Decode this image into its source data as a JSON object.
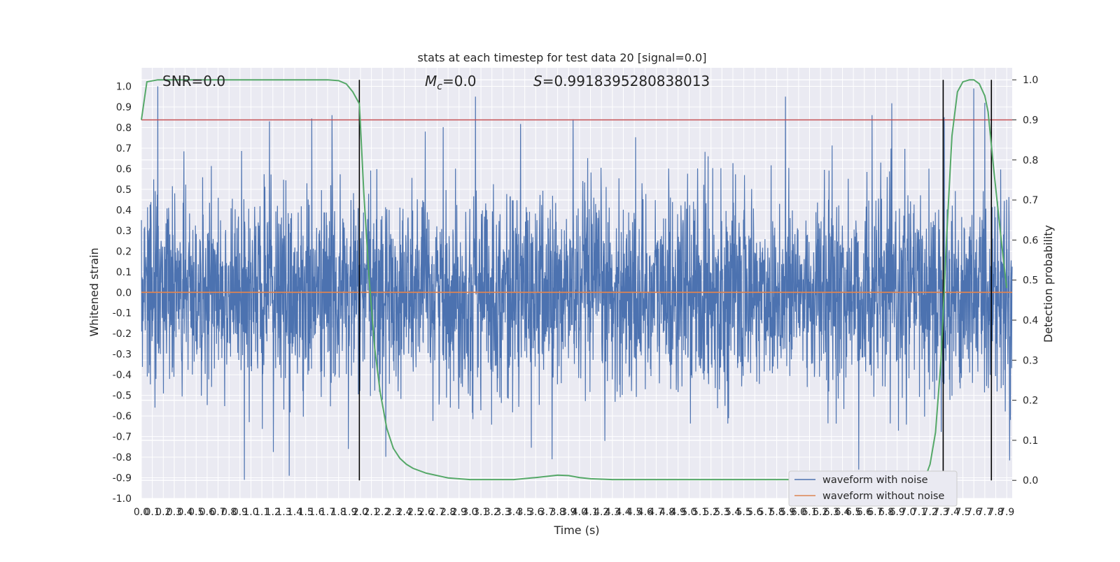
{
  "chart_data": {
    "type": "line",
    "title": "stats at each timestep for test data 20 [signal=0.0]",
    "xlabel": "Time (s)",
    "ylabel": "Whitened strain",
    "y2label": "Detection probability",
    "xlim": [
      0.0,
      7.95
    ],
    "ylim": [
      -1.0,
      1.09
    ],
    "y2lim": [
      -0.045,
      1.03
    ],
    "x_ticks": [
      "0.0",
      "0.1",
      "0.2",
      "0.3",
      "0.4",
      "0.5",
      "0.6",
      "0.7",
      "0.8",
      "0.9",
      "1.0",
      "1.1",
      "1.2",
      "1.3",
      "1.4",
      "1.5",
      "1.6",
      "1.7",
      "1.8",
      "1.9",
      "2.0",
      "2.1",
      "2.2",
      "2.3",
      "2.4",
      "2.5",
      "2.6",
      "2.7",
      "2.8",
      "2.9",
      "3.0",
      "3.1",
      "3.2",
      "3.3",
      "3.4",
      "3.5",
      "3.6",
      "3.7",
      "3.8",
      "3.9",
      "4.0",
      "4.1",
      "4.2",
      "4.3",
      "4.4",
      "4.5",
      "4.6",
      "4.7",
      "4.8",
      "4.9",
      "5.0",
      "5.1",
      "5.2",
      "5.3",
      "5.4",
      "5.5",
      "5.6",
      "5.7",
      "5.8",
      "5.9",
      "6.0",
      "6.1",
      "6.2",
      "6.3",
      "6.4",
      "6.5",
      "6.6",
      "6.7",
      "6.8",
      "6.9",
      "7.0",
      "7.1",
      "7.2",
      "7.3",
      "7.4",
      "7.5",
      "7.6",
      "7.7",
      "7.8",
      "7.9"
    ],
    "y_ticks": [
      "-1.0",
      "-0.9",
      "-0.8",
      "-0.7",
      "-0.6",
      "-0.5",
      "-0.4",
      "-0.3",
      "-0.2",
      "-0.1",
      "0.0",
      "0.1",
      "0.2",
      "0.3",
      "0.4",
      "0.5",
      "0.6",
      "0.7",
      "0.8",
      "0.9",
      "1.0"
    ],
    "y2_ticks": [
      "0.0",
      "0.1",
      "0.2",
      "0.3",
      "0.4",
      "0.5",
      "0.6",
      "0.7",
      "0.8",
      "0.9",
      "1.0"
    ],
    "annotations": {
      "snr": "SNR=0.0",
      "mc_symbol": "M",
      "mc_sub": "c",
      "mc_value": "=0.0",
      "s_symbol": "S",
      "s_value": "=0.9918395280838013"
    },
    "threshold": {
      "axis": "y2",
      "value": 0.9,
      "color": "#c44e52"
    },
    "vertical_lines": [
      1.99,
      7.32,
      7.76
    ],
    "series": [
      {
        "name": "waveform with noise",
        "color": "#4c72b0",
        "noise_model": {
          "samples": 3400,
          "envelope": [
            -0.93,
            1.0
          ],
          "spikes": [
            [
              0.15,
              1.0
            ],
            [
              1.17,
              0.83
            ],
            [
              1.74,
              0.86
            ],
            [
              3.05,
              0.95
            ],
            [
              3.94,
              0.84
            ],
            [
              5.88,
              0.95
            ],
            [
              6.67,
              0.86
            ],
            [
              7.33,
              0.85
            ],
            [
              7.6,
              0.99
            ],
            [
              7.7,
              0.92
            ],
            [
              0.94,
              -0.91
            ],
            [
              1.35,
              -0.89
            ],
            [
              1.89,
              -0.76
            ],
            [
              3.75,
              -0.81
            ],
            [
              6.55,
              -0.86
            ]
          ]
        }
      },
      {
        "name": "waveform without noise",
        "color": "#dd8452",
        "x": [
          0.0,
          7.95
        ],
        "y": [
          0.0,
          0.0
        ]
      },
      {
        "name": "detection probability",
        "axis": "y2",
        "color": "#55a868",
        "x": [
          0.0,
          0.05,
          0.15,
          0.3,
          1.5,
          1.7,
          1.8,
          1.87,
          1.93,
          1.99,
          2.03,
          2.08,
          2.13,
          2.18,
          2.24,
          2.3,
          2.36,
          2.42,
          2.48,
          2.6,
          2.8,
          3.0,
          3.4,
          3.6,
          3.8,
          3.9,
          4.0,
          4.1,
          4.3,
          5.0,
          6.0,
          7.0,
          7.1,
          7.16,
          7.2,
          7.25,
          7.3,
          7.35,
          7.4,
          7.45,
          7.5,
          7.56,
          7.6,
          7.65,
          7.7,
          7.73,
          7.78,
          7.85,
          7.9
        ],
        "y": [
          0.9,
          0.995,
          1.0,
          1.0,
          1.0,
          1.0,
          0.998,
          0.99,
          0.97,
          0.94,
          0.72,
          0.5,
          0.33,
          0.22,
          0.13,
          0.08,
          0.055,
          0.04,
          0.03,
          0.018,
          0.006,
          0.002,
          0.002,
          0.007,
          0.013,
          0.012,
          0.007,
          0.004,
          0.002,
          0.002,
          0.002,
          0.002,
          0.003,
          0.01,
          0.04,
          0.12,
          0.3,
          0.6,
          0.86,
          0.97,
          0.995,
          1.0,
          1.0,
          0.99,
          0.96,
          0.92,
          0.78,
          0.6,
          0.48
        ]
      }
    ],
    "legend": {
      "placement": "lower-right",
      "entries": [
        "waveform with noise",
        "waveform without noise"
      ]
    },
    "grid": true,
    "colors": {
      "plot_bg": "#eaeaf2",
      "grid": "#ffffff",
      "text": "#262626",
      "vline": "#000000"
    }
  }
}
